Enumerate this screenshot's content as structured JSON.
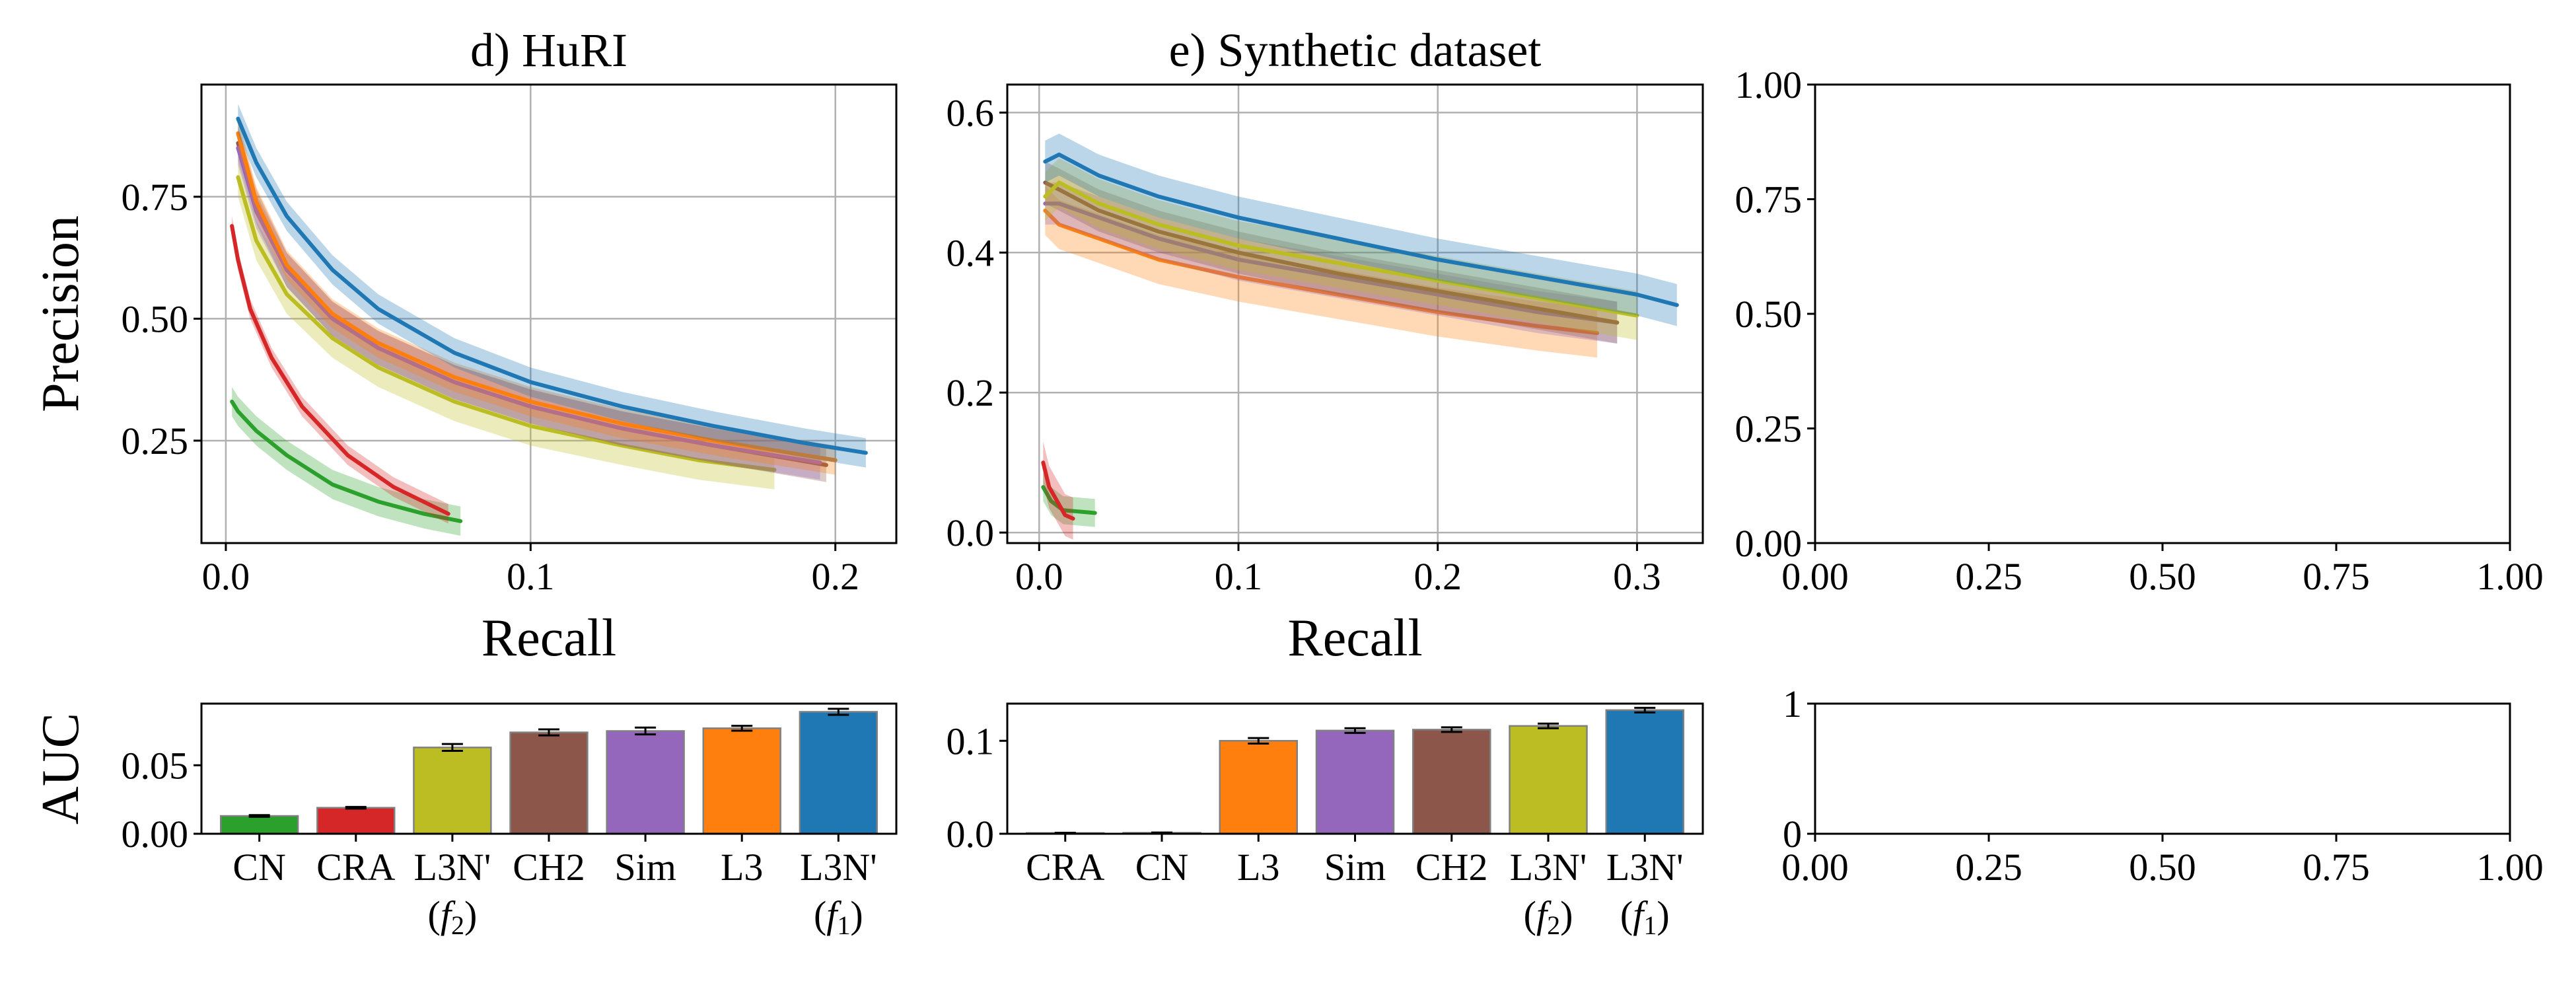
{
  "colors": {
    "CN": "#2ca02c",
    "CRA": "#d62728",
    "L3N_f2": "#bcbd22",
    "CH2": "#8c564b",
    "Sim": "#9467bd",
    "L3": "#ff7f0e",
    "L3N_f1": "#1f77b4",
    "grid": "#b0b0b0",
    "bar_edge": "#808080"
  },
  "chart_data": [
    {
      "id": "pr_huri",
      "type": "line",
      "title": "d) HuRI",
      "xlabel": "Recall",
      "ylabel": "Precision",
      "xlim": [
        -0.008,
        0.22
      ],
      "ylim": [
        0.04,
        0.98
      ],
      "xticks": [
        0,
        0.1,
        0.2
      ],
      "xtick_labels": [
        "0.0",
        "0.1",
        "0.2"
      ],
      "yticks": [
        0.25,
        0.5,
        0.75
      ],
      "ytick_labels": [
        "0.25",
        "0.50",
        "0.75"
      ],
      "grid": true,
      "series": [
        {
          "key": "CN",
          "band": 0.03,
          "points": [
            [
              0.002,
              0.33
            ],
            [
              0.004,
              0.31
            ],
            [
              0.01,
              0.27
            ],
            [
              0.02,
              0.22
            ],
            [
              0.035,
              0.16
            ],
            [
              0.05,
              0.125
            ],
            [
              0.065,
              0.1
            ],
            [
              0.077,
              0.085
            ]
          ]
        },
        {
          "key": "CRA",
          "band": 0.02,
          "points": [
            [
              0.002,
              0.69
            ],
            [
              0.004,
              0.62
            ],
            [
              0.008,
              0.52
            ],
            [
              0.015,
              0.42
            ],
            [
              0.025,
              0.32
            ],
            [
              0.04,
              0.22
            ],
            [
              0.055,
              0.155
            ],
            [
              0.073,
              0.1
            ]
          ]
        },
        {
          "key": "L3N_f2",
          "band": 0.04,
          "points": [
            [
              0.004,
              0.79
            ],
            [
              0.01,
              0.66
            ],
            [
              0.02,
              0.55
            ],
            [
              0.035,
              0.46
            ],
            [
              0.05,
              0.4
            ],
            [
              0.075,
              0.33
            ],
            [
              0.1,
              0.28
            ],
            [
              0.13,
              0.24
            ],
            [
              0.155,
              0.21
            ],
            [
              0.18,
              0.19
            ]
          ]
        },
        {
          "key": "CH2",
          "band": 0.035,
          "points": [
            [
              0.004,
              0.86
            ],
            [
              0.01,
              0.73
            ],
            [
              0.02,
              0.6
            ],
            [
              0.035,
              0.5
            ],
            [
              0.05,
              0.44
            ],
            [
              0.075,
              0.37
            ],
            [
              0.1,
              0.32
            ],
            [
              0.13,
              0.275
            ],
            [
              0.16,
              0.24
            ],
            [
              0.197,
              0.2
            ]
          ]
        },
        {
          "key": "Sim",
          "band": 0.035,
          "points": [
            [
              0.004,
              0.85
            ],
            [
              0.01,
              0.72
            ],
            [
              0.02,
              0.6
            ],
            [
              0.035,
              0.5
            ],
            [
              0.05,
              0.44
            ],
            [
              0.075,
              0.37
            ],
            [
              0.1,
              0.32
            ],
            [
              0.13,
              0.275
            ],
            [
              0.16,
              0.24
            ],
            [
              0.195,
              0.205
            ]
          ]
        },
        {
          "key": "L3",
          "band": 0.03,
          "points": [
            [
              0.004,
              0.88
            ],
            [
              0.01,
              0.74
            ],
            [
              0.02,
              0.61
            ],
            [
              0.035,
              0.51
            ],
            [
              0.05,
              0.45
            ],
            [
              0.075,
              0.38
            ],
            [
              0.1,
              0.33
            ],
            [
              0.13,
              0.285
            ],
            [
              0.16,
              0.25
            ],
            [
              0.2,
              0.21
            ]
          ]
        },
        {
          "key": "L3N_f1",
          "band": 0.03,
          "points": [
            [
              0.004,
              0.91
            ],
            [
              0.01,
              0.82
            ],
            [
              0.02,
              0.71
            ],
            [
              0.035,
              0.6
            ],
            [
              0.05,
              0.52
            ],
            [
              0.075,
              0.43
            ],
            [
              0.1,
              0.37
            ],
            [
              0.13,
              0.32
            ],
            [
              0.16,
              0.28
            ],
            [
              0.19,
              0.245
            ],
            [
              0.21,
              0.225
            ]
          ]
        }
      ]
    },
    {
      "id": "pr_synthetic",
      "type": "line",
      "title": "e) Synthetic dataset",
      "xlabel": "Recall",
      "ylabel": "",
      "xlim": [
        -0.016,
        0.333
      ],
      "ylim": [
        -0.015,
        0.64
      ],
      "xticks": [
        0,
        0.1,
        0.2,
        0.3
      ],
      "xtick_labels": [
        "0.0",
        "0.1",
        "0.2",
        "0.3"
      ],
      "yticks": [
        0,
        0.2,
        0.4,
        0.6
      ],
      "ytick_labels": [
        "0.0",
        "0.2",
        "0.4",
        "0.6"
      ],
      "grid": true,
      "series": [
        {
          "key": "CN",
          "band": 0.02,
          "points": [
            [
              0.002,
              0.065
            ],
            [
              0.006,
              0.045
            ],
            [
              0.012,
              0.032
            ],
            [
              0.02,
              0.03
            ],
            [
              0.028,
              0.028
            ]
          ]
        },
        {
          "key": "CRA",
          "band": 0.03,
          "points": [
            [
              0.002,
              0.1
            ],
            [
              0.005,
              0.065
            ],
            [
              0.009,
              0.045
            ],
            [
              0.013,
              0.025
            ],
            [
              0.017,
              0.02
            ]
          ]
        },
        {
          "key": "L3",
          "band": 0.035,
          "points": [
            [
              0.003,
              0.46
            ],
            [
              0.01,
              0.44
            ],
            [
              0.03,
              0.42
            ],
            [
              0.06,
              0.39
            ],
            [
              0.1,
              0.365
            ],
            [
              0.15,
              0.34
            ],
            [
              0.2,
              0.315
            ],
            [
              0.25,
              0.295
            ],
            [
              0.28,
              0.285
            ]
          ]
        },
        {
          "key": "Sim",
          "band": 0.03,
          "points": [
            [
              0.003,
              0.47
            ],
            [
              0.01,
              0.47
            ],
            [
              0.03,
              0.45
            ],
            [
              0.06,
              0.42
            ],
            [
              0.1,
              0.39
            ],
            [
              0.15,
              0.365
            ],
            [
              0.2,
              0.34
            ],
            [
              0.25,
              0.315
            ],
            [
              0.29,
              0.3
            ]
          ]
        },
        {
          "key": "CH2",
          "band": 0.03,
          "points": [
            [
              0.003,
              0.5
            ],
            [
              0.01,
              0.49
            ],
            [
              0.03,
              0.46
            ],
            [
              0.06,
              0.43
            ],
            [
              0.1,
              0.4
            ],
            [
              0.15,
              0.37
            ],
            [
              0.2,
              0.345
            ],
            [
              0.25,
              0.32
            ],
            [
              0.29,
              0.3
            ]
          ]
        },
        {
          "key": "L3N_f2",
          "band": 0.035,
          "points": [
            [
              0.003,
              0.48
            ],
            [
              0.01,
              0.5
            ],
            [
              0.03,
              0.47
            ],
            [
              0.06,
              0.44
            ],
            [
              0.1,
              0.41
            ],
            [
              0.15,
              0.385
            ],
            [
              0.2,
              0.36
            ],
            [
              0.25,
              0.335
            ],
            [
              0.3,
              0.31
            ]
          ]
        },
        {
          "key": "L3N_f1",
          "band": 0.03,
          "points": [
            [
              0.003,
              0.53
            ],
            [
              0.01,
              0.54
            ],
            [
              0.03,
              0.51
            ],
            [
              0.06,
              0.48
            ],
            [
              0.1,
              0.45
            ],
            [
              0.15,
              0.42
            ],
            [
              0.2,
              0.39
            ],
            [
              0.25,
              0.365
            ],
            [
              0.3,
              0.34
            ],
            [
              0.32,
              0.325
            ]
          ]
        }
      ]
    },
    {
      "id": "pr_empty",
      "type": "line",
      "title": "",
      "xlabel": "",
      "ylabel": "",
      "xlim": [
        0,
        1
      ],
      "ylim": [
        0,
        1
      ],
      "xticks": [
        0,
        0.25,
        0.5,
        0.75,
        1
      ],
      "xtick_labels": [
        "0.00",
        "0.25",
        "0.50",
        "0.75",
        "1.00"
      ],
      "yticks": [
        0,
        0.25,
        0.5,
        0.75,
        1
      ],
      "ytick_labels": [
        "0.00",
        "0.25",
        "0.50",
        "0.75",
        "1.00"
      ],
      "grid": false,
      "series": []
    },
    {
      "id": "auc_huri",
      "type": "bar",
      "ylabel": "AUC",
      "ylim": [
        0,
        0.095
      ],
      "yticks": [
        0,
        0.05
      ],
      "ytick_labels": [
        "0.00",
        "0.05"
      ],
      "bars": [
        {
          "key": "CN",
          "label": [
            "CN"
          ],
          "value": 0.013,
          "err": 0.0006
        },
        {
          "key": "CRA",
          "label": [
            "CRA"
          ],
          "value": 0.019,
          "err": 0.0006
        },
        {
          "key": "L3N_f2",
          "label": [
            "L3N'",
            "(f2)"
          ],
          "value": 0.063,
          "err": 0.0025
        },
        {
          "key": "CH2",
          "label": [
            "CH2"
          ],
          "value": 0.074,
          "err": 0.0022
        },
        {
          "key": "Sim",
          "label": [
            "Sim"
          ],
          "value": 0.075,
          "err": 0.0025
        },
        {
          "key": "L3",
          "label": [
            "L3"
          ],
          "value": 0.077,
          "err": 0.0018
        },
        {
          "key": "L3N_f1",
          "label": [
            "L3N'",
            "(f1)"
          ],
          "value": 0.089,
          "err": 0.0022
        }
      ]
    },
    {
      "id": "auc_synthetic",
      "type": "bar",
      "ylabel": "",
      "ylim": [
        0,
        0.14
      ],
      "yticks": [
        0,
        0.1
      ],
      "ytick_labels": [
        "0.0",
        "0.1"
      ],
      "bars": [
        {
          "key": "CRA",
          "label": [
            "CRA"
          ],
          "value": 0.0008,
          "err": 0.0003
        },
        {
          "key": "CN",
          "label": [
            "CN"
          ],
          "value": 0.001,
          "err": 0.0003
        },
        {
          "key": "L3",
          "label": [
            "L3"
          ],
          "value": 0.1,
          "err": 0.003
        },
        {
          "key": "Sim",
          "label": [
            "Sim"
          ],
          "value": 0.111,
          "err": 0.0025
        },
        {
          "key": "CH2",
          "label": [
            "CH2"
          ],
          "value": 0.112,
          "err": 0.0025
        },
        {
          "key": "L3N_f2",
          "label": [
            "L3N'",
            "(f2)"
          ],
          "value": 0.116,
          "err": 0.0025
        },
        {
          "key": "L3N_f1",
          "label": [
            "L3N'",
            "(f1)"
          ],
          "value": 0.133,
          "err": 0.0025
        }
      ]
    },
    {
      "id": "auc_empty",
      "type": "bar",
      "ylabel": "",
      "ylim": [
        0,
        1
      ],
      "yticks": [
        0,
        1
      ],
      "ytick_labels": [
        "0",
        "1"
      ],
      "xlim": [
        0,
        1
      ],
      "xticks": [
        0,
        0.25,
        0.5,
        0.75,
        1
      ],
      "xtick_labels": [
        "0.00",
        "0.25",
        "0.50",
        "0.75",
        "1.00"
      ],
      "bars": []
    }
  ]
}
